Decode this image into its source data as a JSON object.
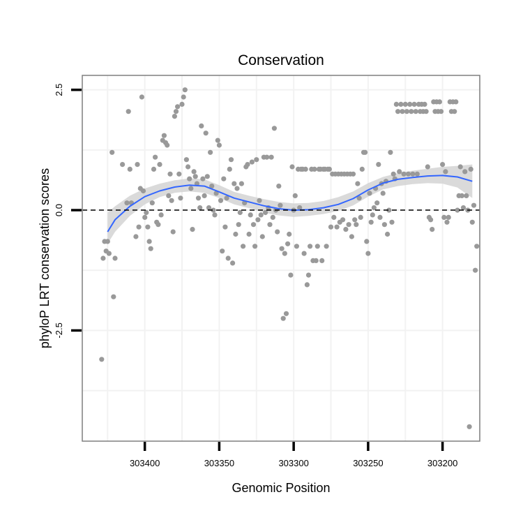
{
  "chart_data": {
    "type": "scatter",
    "title": "Conservation",
    "xlabel": "Genomic Position",
    "ylabel": "phyloP LRT conservation scores",
    "x_reversed": true,
    "xlim": [
      303175,
      303442
    ],
    "ylim": [
      -4.8,
      2.8
    ],
    "x_ticks": [
      303400,
      303350,
      303300,
      303250,
      303200
    ],
    "x_tick_labels": [
      "303400",
      "303350",
      "303300",
      "303250",
      "303200"
    ],
    "y_ticks": [
      2.5,
      0.0,
      -2.5
    ],
    "y_tick_labels": [
      "2.5",
      "0.0",
      "-2.5"
    ],
    "grid": true,
    "reference_line": {
      "y": 0,
      "style": "dashed",
      "color": "#000000"
    },
    "point_color": "#999999",
    "smooth_color": "#3366ff",
    "ribbon_color": "#d3d3d3",
    "frame_color": "#7f7f7f",
    "grid_color": "#f2f2f2",
    "smooth_curve": [
      {
        "x": 303425,
        "y": -0.45
      },
      {
        "x": 303420,
        "y": -0.2
      },
      {
        "x": 303410,
        "y": 0.08
      },
      {
        "x": 303400,
        "y": 0.28
      },
      {
        "x": 303390,
        "y": 0.4
      },
      {
        "x": 303380,
        "y": 0.48
      },
      {
        "x": 303370,
        "y": 0.52
      },
      {
        "x": 303360,
        "y": 0.5
      },
      {
        "x": 303350,
        "y": 0.38
      },
      {
        "x": 303340,
        "y": 0.25
      },
      {
        "x": 303330,
        "y": 0.17
      },
      {
        "x": 303320,
        "y": 0.09
      },
      {
        "x": 303310,
        "y": 0.03
      },
      {
        "x": 303300,
        "y": 0.0
      },
      {
        "x": 303290,
        "y": 0.01
      },
      {
        "x": 303280,
        "y": 0.05
      },
      {
        "x": 303270,
        "y": 0.12
      },
      {
        "x": 303260,
        "y": 0.24
      },
      {
        "x": 303250,
        "y": 0.42
      },
      {
        "x": 303240,
        "y": 0.56
      },
      {
        "x": 303230,
        "y": 0.64
      },
      {
        "x": 303220,
        "y": 0.68
      },
      {
        "x": 303210,
        "y": 0.71
      },
      {
        "x": 303200,
        "y": 0.72
      },
      {
        "x": 303190,
        "y": 0.69
      },
      {
        "x": 303180,
        "y": 0.6
      }
    ],
    "ribbon": [
      {
        "x": 303425,
        "lo": -0.7,
        "hi": -0.05
      },
      {
        "x": 303420,
        "lo": -0.45,
        "hi": 0.08
      },
      {
        "x": 303410,
        "lo": -0.12,
        "hi": 0.3
      },
      {
        "x": 303400,
        "lo": 0.12,
        "hi": 0.45
      },
      {
        "x": 303390,
        "lo": 0.27,
        "hi": 0.55
      },
      {
        "x": 303380,
        "lo": 0.36,
        "hi": 0.62
      },
      {
        "x": 303370,
        "lo": 0.39,
        "hi": 0.66
      },
      {
        "x": 303360,
        "lo": 0.36,
        "hi": 0.64
      },
      {
        "x": 303350,
        "lo": 0.25,
        "hi": 0.52
      },
      {
        "x": 303340,
        "lo": 0.12,
        "hi": 0.38
      },
      {
        "x": 303330,
        "lo": 0.04,
        "hi": 0.3
      },
      {
        "x": 303320,
        "lo": -0.05,
        "hi": 0.23
      },
      {
        "x": 303310,
        "lo": -0.11,
        "hi": 0.17
      },
      {
        "x": 303300,
        "lo": -0.14,
        "hi": 0.14
      },
      {
        "x": 303290,
        "lo": -0.12,
        "hi": 0.15
      },
      {
        "x": 303280,
        "lo": -0.08,
        "hi": 0.19
      },
      {
        "x": 303270,
        "lo": -0.02,
        "hi": 0.27
      },
      {
        "x": 303260,
        "lo": 0.1,
        "hi": 0.39
      },
      {
        "x": 303250,
        "lo": 0.28,
        "hi": 0.56
      },
      {
        "x": 303240,
        "lo": 0.43,
        "hi": 0.69
      },
      {
        "x": 303230,
        "lo": 0.5,
        "hi": 0.77
      },
      {
        "x": 303220,
        "lo": 0.54,
        "hi": 0.82
      },
      {
        "x": 303210,
        "lo": 0.56,
        "hi": 0.86
      },
      {
        "x": 303200,
        "lo": 0.55,
        "hi": 0.9
      },
      {
        "x": 303190,
        "lo": 0.47,
        "hi": 0.92
      },
      {
        "x": 303180,
        "lo": 0.25,
        "hi": 0.95
      }
    ],
    "points": [
      {
        "x": 303429,
        "y": -3.1
      },
      {
        "x": 303428,
        "y": -1.0
      },
      {
        "x": 303427,
        "y": -0.65
      },
      {
        "x": 303426,
        "y": -0.85
      },
      {
        "x": 303425,
        "y": -0.65
      },
      {
        "x": 303424,
        "y": -0.9
      },
      {
        "x": 303422,
        "y": 1.2
      },
      {
        "x": 303421,
        "y": -1.8
      },
      {
        "x": 303420,
        "y": -1.0
      },
      {
        "x": 303415,
        "y": 0.95
      },
      {
        "x": 303412,
        "y": 0.15
      },
      {
        "x": 303411,
        "y": 2.05
      },
      {
        "x": 303410,
        "y": 0.85
      },
      {
        "x": 303409,
        "y": 0.15
      },
      {
        "x": 303406,
        "y": -0.55
      },
      {
        "x": 303405,
        "y": 0.95
      },
      {
        "x": 303404,
        "y": -0.35
      },
      {
        "x": 303403,
        "y": 0.45
      },
      {
        "x": 303402,
        "y": 2.35
      },
      {
        "x": 303401,
        "y": 0.4
      },
      {
        "x": 303400,
        "y": -0.15
      },
      {
        "x": 303399,
        "y": -0.05
      },
      {
        "x": 303398,
        "y": -0.35
      },
      {
        "x": 303397,
        "y": -0.65
      },
      {
        "x": 303396,
        "y": -0.8
      },
      {
        "x": 303395,
        "y": 0.15
      },
      {
        "x": 303394,
        "y": 0.85
      },
      {
        "x": 303393,
        "y": 1.1
      },
      {
        "x": 303392,
        "y": -0.25
      },
      {
        "x": 303391,
        "y": -0.3
      },
      {
        "x": 303390,
        "y": 0.95
      },
      {
        "x": 303389,
        "y": -0.1
      },
      {
        "x": 303388,
        "y": 1.45
      },
      {
        "x": 303387,
        "y": 1.55
      },
      {
        "x": 303386,
        "y": 1.4
      },
      {
        "x": 303385,
        "y": 1.35
      },
      {
        "x": 303384,
        "y": 0.3
      },
      {
        "x": 303383,
        "y": 0.75
      },
      {
        "x": 303382,
        "y": 0.2
      },
      {
        "x": 303381,
        "y": -0.45
      },
      {
        "x": 303380,
        "y": 1.95
      },
      {
        "x": 303379,
        "y": 2.05
      },
      {
        "x": 303378,
        "y": 2.15
      },
      {
        "x": 303377,
        "y": 0.75
      },
      {
        "x": 303376,
        "y": 0.25
      },
      {
        "x": 303375,
        "y": 2.2
      },
      {
        "x": 303374,
        "y": 2.35
      },
      {
        "x": 303373,
        "y": 2.5
      },
      {
        "x": 303372,
        "y": 1.05
      },
      {
        "x": 303371,
        "y": 0.9
      },
      {
        "x": 303370,
        "y": 0.65
      },
      {
        "x": 303369,
        "y": 0.45
      },
      {
        "x": 303368,
        "y": -0.4
      },
      {
        "x": 303367,
        "y": 0.8
      },
      {
        "x": 303366,
        "y": 0.7
      },
      {
        "x": 303365,
        "y": 0.55
      },
      {
        "x": 303364,
        "y": 0.25
      },
      {
        "x": 303363,
        "y": 0.05
      },
      {
        "x": 303362,
        "y": 1.75
      },
      {
        "x": 303361,
        "y": 0.65
      },
      {
        "x": 303360,
        "y": 0.3
      },
      {
        "x": 303359,
        "y": 1.6
      },
      {
        "x": 303358,
        "y": 0.7
      },
      {
        "x": 303357,
        "y": 0.05
      },
      {
        "x": 303356,
        "y": 1.2
      },
      {
        "x": 303355,
        "y": 0.5
      },
      {
        "x": 303354,
        "y": 0.0
      },
      {
        "x": 303353,
        "y": -0.1
      },
      {
        "x": 303352,
        "y": 0.35
      },
      {
        "x": 303351,
        "y": 1.45
      },
      {
        "x": 303350,
        "y": 1.35
      },
      {
        "x": 303349,
        "y": 0.2
      },
      {
        "x": 303348,
        "y": -0.85
      },
      {
        "x": 303347,
        "y": 0.65
      },
      {
        "x": 303346,
        "y": -0.35
      },
      {
        "x": 303345,
        "y": 0.25
      },
      {
        "x": 303344,
        "y": -1.0
      },
      {
        "x": 303343,
        "y": 0.85
      },
      {
        "x": 303342,
        "y": 1.05
      },
      {
        "x": 303341,
        "y": -1.1
      },
      {
        "x": 303340,
        "y": 0.55
      },
      {
        "x": 303339,
        "y": -0.5
      },
      {
        "x": 303338,
        "y": 0.45
      },
      {
        "x": 303337,
        "y": -0.3
      },
      {
        "x": 303336,
        "y": -0.05
      },
      {
        "x": 303335,
        "y": 0.55
      },
      {
        "x": 303334,
        "y": -0.75
      },
      {
        "x": 303333,
        "y": 0.15
      },
      {
        "x": 303332,
        "y": 0.9
      },
      {
        "x": 303331,
        "y": 0.95
      },
      {
        "x": 303330,
        "y": -0.5
      },
      {
        "x": 303329,
        "y": -0.1
      },
      {
        "x": 303328,
        "y": 1.0
      },
      {
        "x": 303327,
        "y": -0.3
      },
      {
        "x": 303326,
        "y": -0.75
      },
      {
        "x": 303325,
        "y": 1.05
      },
      {
        "x": 303324,
        "y": -0.2
      },
      {
        "x": 303323,
        "y": 0.2
      },
      {
        "x": 303322,
        "y": -0.1
      },
      {
        "x": 303321,
        "y": -0.55
      },
      {
        "x": 303320,
        "y": 1.1
      },
      {
        "x": 303319,
        "y": -0.05
      },
      {
        "x": 303318,
        "y": 1.1
      },
      {
        "x": 303317,
        "y": 0.05
      },
      {
        "x": 303316,
        "y": -0.3
      },
      {
        "x": 303315,
        "y": 1.1
      },
      {
        "x": 303314,
        "y": -0.15
      },
      {
        "x": 303313,
        "y": 1.7
      },
      {
        "x": 303312,
        "y": 0.0
      },
      {
        "x": 303311,
        "y": -0.45
      },
      {
        "x": 303310,
        "y": 0.5
      },
      {
        "x": 303309,
        "y": 0.1
      },
      {
        "x": 303308,
        "y": -0.8
      },
      {
        "x": 303307,
        "y": -2.25
      },
      {
        "x": 303306,
        "y": -0.9
      },
      {
        "x": 303305,
        "y": -2.15
      },
      {
        "x": 303304,
        "y": -0.7
      },
      {
        "x": 303303,
        "y": -0.5
      },
      {
        "x": 303302,
        "y": -1.35
      },
      {
        "x": 303301,
        "y": 0.9
      },
      {
        "x": 303300,
        "y": 0.0
      },
      {
        "x": 303299,
        "y": 0.3
      },
      {
        "x": 303298,
        "y": -0.75
      },
      {
        "x": 303297,
        "y": 0.85
      },
      {
        "x": 303296,
        "y": 0.05
      },
      {
        "x": 303295,
        "y": 0.85
      },
      {
        "x": 303294,
        "y": 0.85
      },
      {
        "x": 303293,
        "y": -0.9
      },
      {
        "x": 303292,
        "y": 0.85
      },
      {
        "x": 303291,
        "y": -1.55
      },
      {
        "x": 303290,
        "y": -1.35
      },
      {
        "x": 303289,
        "y": -0.75
      },
      {
        "x": 303288,
        "y": 0.85
      },
      {
        "x": 303287,
        "y": -1.05
      },
      {
        "x": 303286,
        "y": 0.85
      },
      {
        "x": 303285,
        "y": -1.05
      },
      {
        "x": 303284,
        "y": -0.75
      },
      {
        "x": 303283,
        "y": 0.85
      },
      {
        "x": 303282,
        "y": 0.85
      },
      {
        "x": 303281,
        "y": -1.05
      },
      {
        "x": 303280,
        "y": 0.85
      },
      {
        "x": 303279,
        "y": 0.85
      },
      {
        "x": 303278,
        "y": -0.75
      },
      {
        "x": 303277,
        "y": 0.85
      },
      {
        "x": 303276,
        "y": 0.85
      },
      {
        "x": 303275,
        "y": -0.35
      },
      {
        "x": 303274,
        "y": 0.75
      },
      {
        "x": 303273,
        "y": -0.15
      },
      {
        "x": 303272,
        "y": 0.75
      },
      {
        "x": 303271,
        "y": -0.35
      },
      {
        "x": 303270,
        "y": 0.75
      },
      {
        "x": 303269,
        "y": -0.25
      },
      {
        "x": 303268,
        "y": 0.75
      },
      {
        "x": 303267,
        "y": -0.2
      },
      {
        "x": 303266,
        "y": 0.75
      },
      {
        "x": 303265,
        "y": -0.4
      },
      {
        "x": 303264,
        "y": 0.75
      },
      {
        "x": 303263,
        "y": -0.3
      },
      {
        "x": 303262,
        "y": 0.75
      },
      {
        "x": 303261,
        "y": -0.55
      },
      {
        "x": 303260,
        "y": 0.75
      },
      {
        "x": 303259,
        "y": -0.2
      },
      {
        "x": 303258,
        "y": -0.3
      },
      {
        "x": 303257,
        "y": 0.55
      },
      {
        "x": 303256,
        "y": 0.25
      },
      {
        "x": 303255,
        "y": -0.15
      },
      {
        "x": 303254,
        "y": 0.85
      },
      {
        "x": 303253,
        "y": 1.2
      },
      {
        "x": 303252,
        "y": 1.2
      },
      {
        "x": 303251,
        "y": -0.65
      },
      {
        "x": 303250,
        "y": -0.9
      },
      {
        "x": 303249,
        "y": 0.35
      },
      {
        "x": 303248,
        "y": -0.25
      },
      {
        "x": 303247,
        "y": -0.1
      },
      {
        "x": 303246,
        "y": 0.05
      },
      {
        "x": 303245,
        "y": 0.45
      },
      {
        "x": 303244,
        "y": 0.15
      },
      {
        "x": 303243,
        "y": 0.95
      },
      {
        "x": 303242,
        "y": -0.15
      },
      {
        "x": 303241,
        "y": 0.55
      },
      {
        "x": 303240,
        "y": 0.35
      },
      {
        "x": 303239,
        "y": -0.3
      },
      {
        "x": 303238,
        "y": 0.6
      },
      {
        "x": 303237,
        "y": -0.5
      },
      {
        "x": 303236,
        "y": 0.0
      },
      {
        "x": 303235,
        "y": 1.2
      },
      {
        "x": 303234,
        "y": -0.25
      },
      {
        "x": 303233,
        "y": 0.75
      },
      {
        "x": 303232,
        "y": 0.65
      },
      {
        "x": 303231,
        "y": 2.2
      },
      {
        "x": 303230,
        "y": 2.05
      },
      {
        "x": 303229,
        "y": 0.8
      },
      {
        "x": 303228,
        "y": 2.2
      },
      {
        "x": 303227,
        "y": 2.05
      },
      {
        "x": 303226,
        "y": 0.75
      },
      {
        "x": 303225,
        "y": 2.2
      },
      {
        "x": 303224,
        "y": 2.05
      },
      {
        "x": 303223,
        "y": 0.75
      },
      {
        "x": 303222,
        "y": 2.2
      },
      {
        "x": 303221,
        "y": 2.05
      },
      {
        "x": 303220,
        "y": 0.75
      },
      {
        "x": 303219,
        "y": 2.2
      },
      {
        "x": 303218,
        "y": 2.05
      },
      {
        "x": 303217,
        "y": 0.75
      },
      {
        "x": 303216,
        "y": 2.2
      },
      {
        "x": 303215,
        "y": 2.05
      },
      {
        "x": 303214,
        "y": 2.2
      },
      {
        "x": 303213,
        "y": 2.05
      },
      {
        "x": 303212,
        "y": 2.2
      },
      {
        "x": 303211,
        "y": 2.05
      },
      {
        "x": 303210,
        "y": 0.9
      },
      {
        "x": 303209,
        "y": -0.15
      },
      {
        "x": 303208,
        "y": -0.2
      },
      {
        "x": 303207,
        "y": -0.4
      },
      {
        "x": 303206,
        "y": 2.25
      },
      {
        "x": 303205,
        "y": 2.05
      },
      {
        "x": 303204,
        "y": 2.25
      },
      {
        "x": 303203,
        "y": 2.05
      },
      {
        "x": 303202,
        "y": 2.25
      },
      {
        "x": 303201,
        "y": 2.05
      },
      {
        "x": 303200,
        "y": 0.95
      },
      {
        "x": 303199,
        "y": -0.15
      },
      {
        "x": 303198,
        "y": 0.8
      },
      {
        "x": 303197,
        "y": -0.25
      },
      {
        "x": 303196,
        "y": -0.15
      },
      {
        "x": 303195,
        "y": 2.25
      },
      {
        "x": 303194,
        "y": 2.05
      },
      {
        "x": 303193,
        "y": 2.25
      },
      {
        "x": 303192,
        "y": 2.05
      },
      {
        "x": 303191,
        "y": 2.25
      },
      {
        "x": 303190,
        "y": 0.0
      },
      {
        "x": 303189,
        "y": 0.3
      },
      {
        "x": 303188,
        "y": 0.9
      },
      {
        "x": 303187,
        "y": 0.3
      },
      {
        "x": 303186,
        "y": 0.05
      },
      {
        "x": 303185,
        "y": 0.8
      },
      {
        "x": 303184,
        "y": 0.3
      },
      {
        "x": 303183,
        "y": 0.0
      },
      {
        "x": 303182,
        "y": -4.5
      },
      {
        "x": 303181,
        "y": 0.85
      },
      {
        "x": 303180,
        "y": -0.25
      },
      {
        "x": 303179,
        "y": 0.1
      },
      {
        "x": 303178,
        "y": -1.25
      },
      {
        "x": 303177,
        "y": -0.75
      }
    ]
  }
}
